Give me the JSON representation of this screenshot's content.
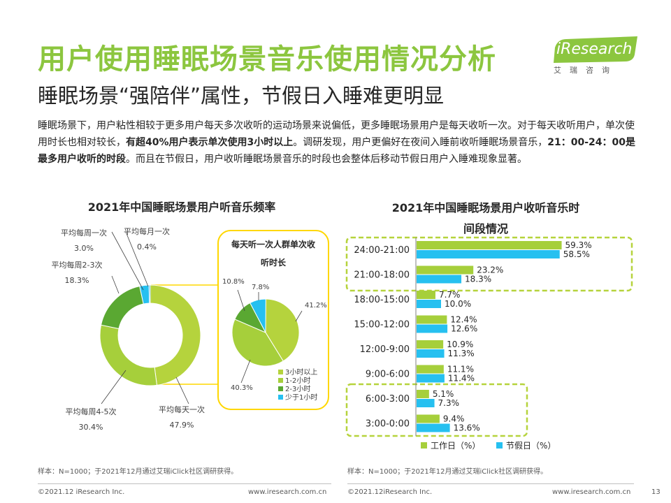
{
  "header": {
    "title": "用户使用睡眠场景音乐使用情况分析",
    "subtitle": "睡眠场景“强陪伴”属性，节假日入睡难更明显",
    "logo": "iResearch",
    "logo_cn": "艾瑞咨询"
  },
  "description": {
    "p1": "睡眠场景下，用户粘性相较于更多用户每天多次收听的运动场景来说偏低，更多睡眠场景用户是每天收听一次。对于每天收听用户，单次使用时长也相对较长，",
    "b1": "有超40%用户表示单次使用3小时以上",
    "p2": "。调研发现，用户更偏好在夜间入睡前收听睡眠场景音乐，",
    "b2": "21：00-24：00是最多用户收听的时段",
    "p3": "。而且在节假日，用户收听睡眠场景音乐的时段也会整体后移动节假日用户入睡难现象显著。"
  },
  "colors": {
    "accent_green": "#8cc63f",
    "dark_green": "#5aa832",
    "mid_green": "#a6cf3b",
    "light_green": "#b5d33d",
    "cyan": "#26c0f0",
    "dashed_green": "#b6d33c",
    "callout_yellow": "#ffd700"
  },
  "chart_data": [
    {
      "type": "pie",
      "title": "2021年中国睡眠场景用户听音乐频率",
      "variant": "donut",
      "labels": [
        "平均每天一次",
        "平均每周4-5次",
        "平均每周2-3次",
        "平均每周一次",
        "平均每月一次"
      ],
      "values": [
        47.9,
        30.4,
        18.3,
        3.0,
        0.4
      ],
      "value_labels": [
        "47.9%",
        "30.4%",
        "18.3%",
        "3.0%",
        "0.4%"
      ]
    },
    {
      "type": "pie",
      "title": "每天听一次人群单次收听时长",
      "labels": [
        "3小时以上",
        "1-2小时",
        "2-3小时",
        "少于1小时"
      ],
      "values": [
        41.2,
        40.3,
        10.8,
        7.8
      ],
      "value_labels": [
        "41.2%",
        "40.3%",
        "10.8%",
        "7.8%"
      ]
    },
    {
      "type": "bar",
      "orientation": "horizontal",
      "title_line1": "2021年中国睡眠场景用户收听音乐时",
      "title_line2": "间段情况",
      "categories": [
        "24:00-21:00",
        "21:00-18:00",
        "18:00-15:00",
        "15:00-12:00",
        "12:00-9:00",
        "9:00-6:00",
        "6:00-3:00",
        "3:00-0:00"
      ],
      "series": [
        {
          "name": "工作日（%）",
          "values": [
            59.3,
            23.2,
            7.7,
            12.4,
            10.9,
            11.1,
            5.1,
            9.4
          ]
        },
        {
          "name": "节假日（%）",
          "values": [
            58.5,
            18.3,
            10.0,
            12.6,
            11.3,
            11.4,
            7.3,
            13.6
          ]
        }
      ],
      "value_labels": [
        [
          "59.3%",
          "23.2%",
          "7.7%",
          "12.4%",
          "10.9%",
          "11.1%",
          "5.1%",
          "9.4%"
        ],
        [
          "58.5%",
          "18.3%",
          "10.0%",
          "12.6%",
          "11.3%",
          "11.4%",
          "7.3%",
          "13.6%"
        ]
      ],
      "xlim": [
        0,
        70
      ],
      "legend_position": "bottom"
    }
  ],
  "footer": {
    "note_left": "样本：N=1000；于2021年12月通过艾瑞iClick社区调研获得。",
    "note_right": "样本：N=1000；于2021年12月通过艾瑞iClick社区调研获得。",
    "copyright_left": "©2021.12 iResearch Inc.",
    "url_left": "www.iresearch.com.cn",
    "copyright_right": "©2021.12iResearch Inc.",
    "url_right": "www.iresearch.com.cn",
    "page_number": "13"
  }
}
